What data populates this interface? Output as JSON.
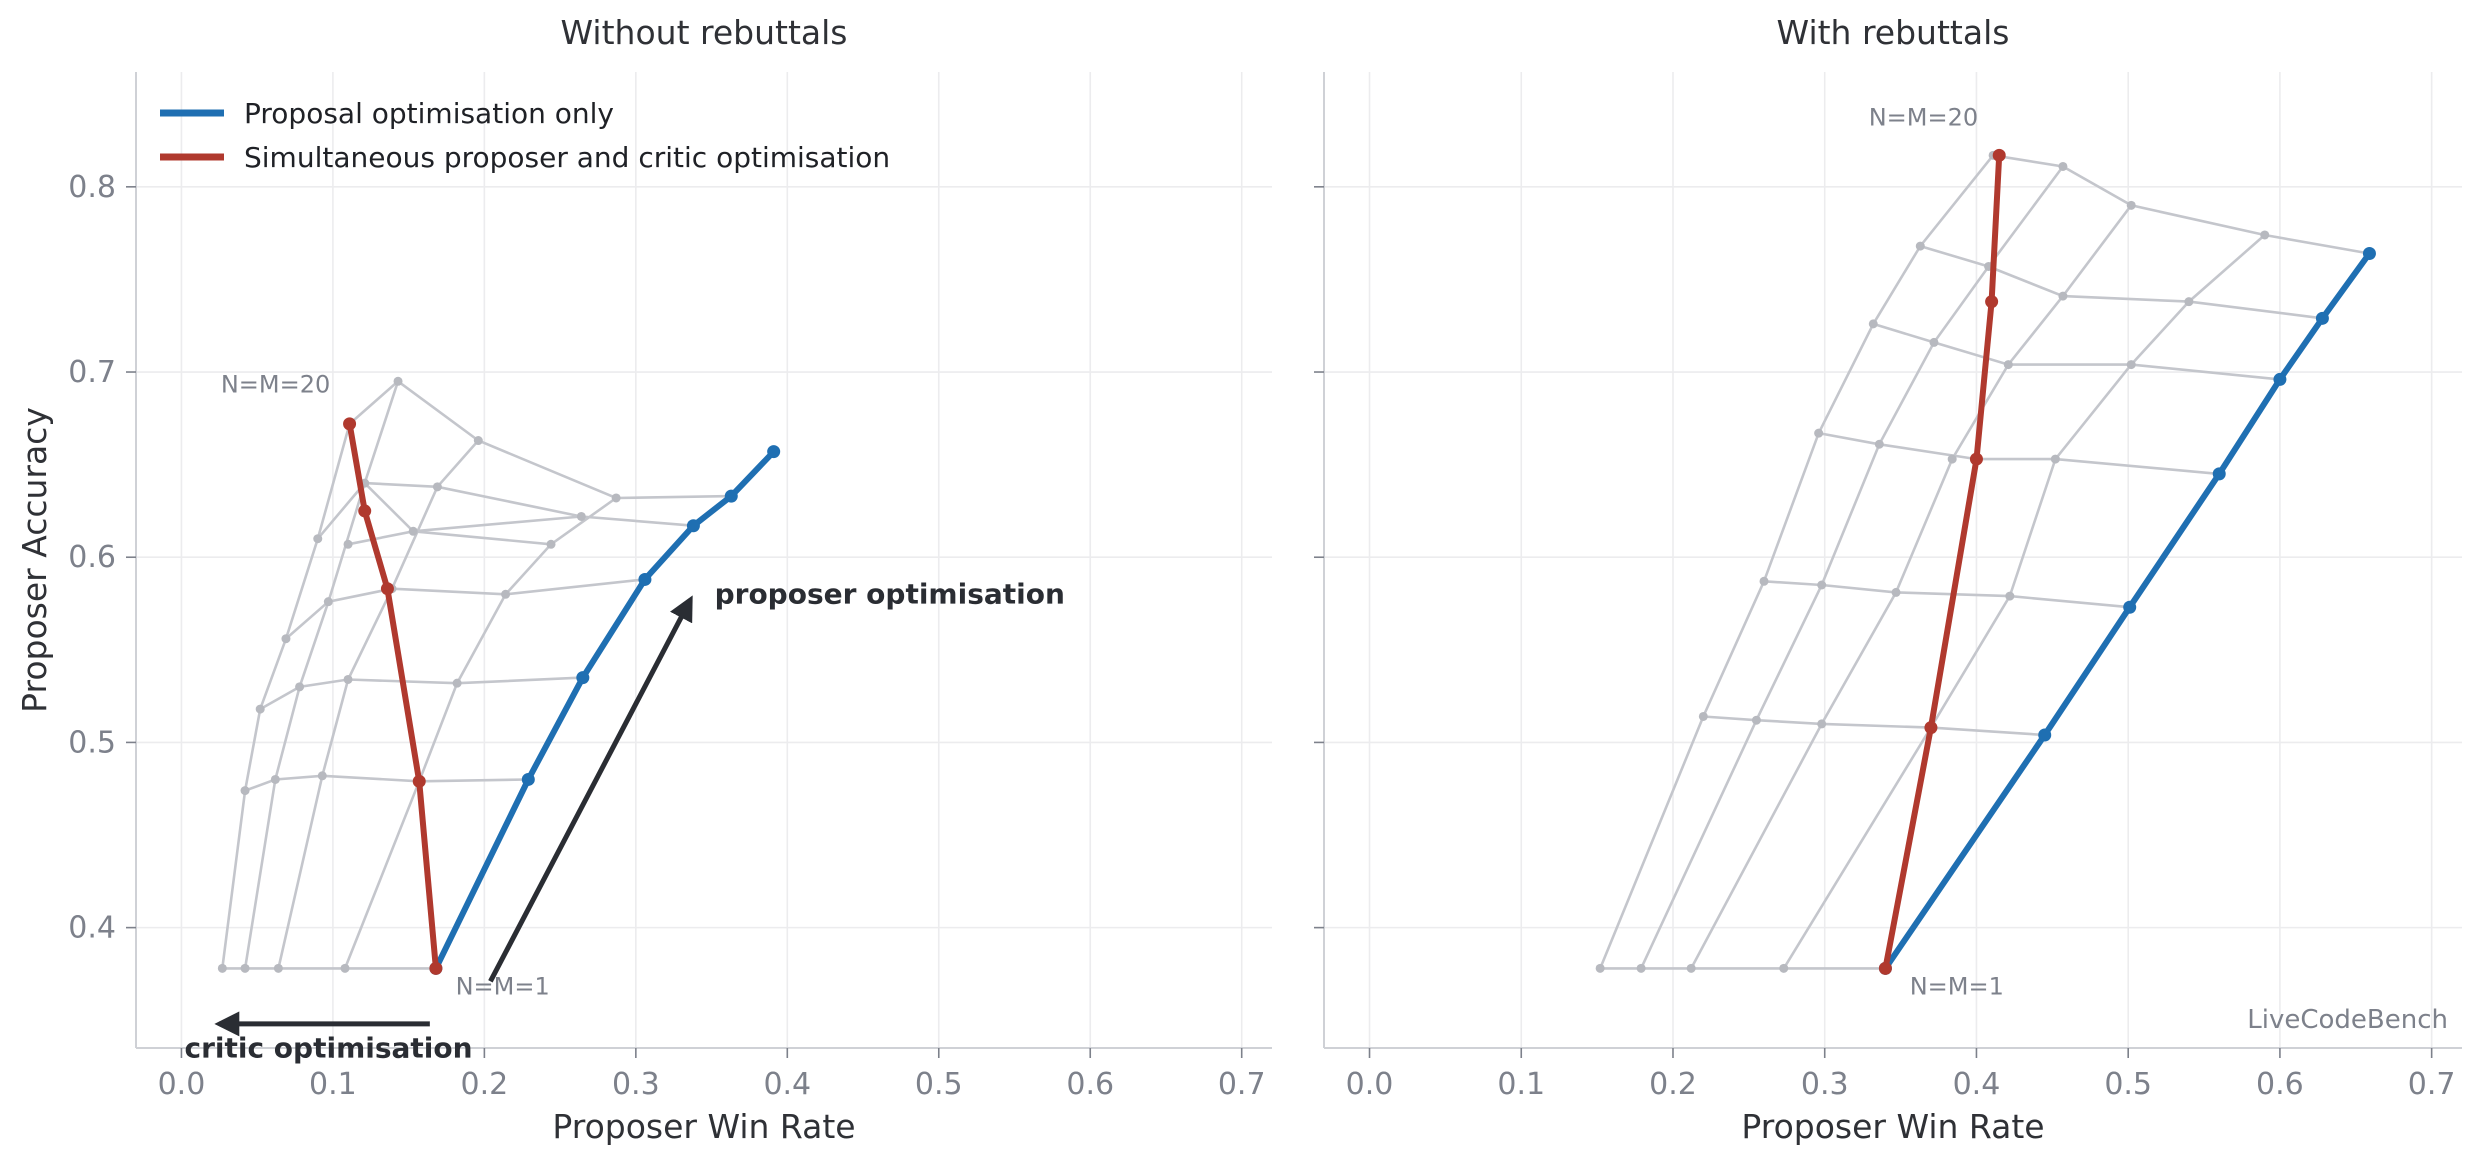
{
  "chart_data": [
    {
      "type": "line",
      "title": "Without rebuttals",
      "xlabel": "Proposer Win Rate",
      "ylabel": "Proposer Accuracy",
      "xlim": [
        -0.03,
        0.72
      ],
      "ylim": [
        0.335,
        0.862
      ],
      "xticks": [
        "0.0",
        "0.1",
        "0.2",
        "0.3",
        "0.4",
        "0.5",
        "0.6",
        "0.7"
      ],
      "yticks": [
        "0.4",
        "0.5",
        "0.6",
        "0.7",
        "0.8"
      ],
      "grid": true,
      "legend": {
        "placement": "top-left",
        "entries": [
          {
            "label": "Proposal optimisation only",
            "color": "#1f6fb2"
          },
          {
            "label": "Simultaneous proposer and critic optimisation",
            "color": "#b0392e"
          }
        ]
      },
      "annotations": [
        {
          "text": "N=M=20",
          "x": 0.026,
          "y": 0.689
        },
        {
          "text": "N=M=1",
          "x": 0.181,
          "y": 0.364
        }
      ],
      "arrows": [
        {
          "label": "proposer optimisation",
          "from": [
            0.204,
            0.371
          ],
          "to": [
            0.336,
            0.577
          ],
          "text_at": [
            0.352,
            0.575
          ]
        },
        {
          "label": "critic optimisation",
          "from": [
            0.164,
            0.348
          ],
          "to": [
            0.025,
            0.348
          ],
          "text_at": [
            0.002,
            0.33
          ]
        }
      ],
      "grid_color": "#c4c6cc",
      "grid_lines": [
        [
          [
            0.027,
            0.378
          ],
          [
            0.042,
            0.474
          ],
          [
            0.052,
            0.518
          ],
          [
            0.069,
            0.556
          ],
          [
            0.09,
            0.61
          ],
          [
            0.111,
            0.672
          ]
        ],
        [
          [
            0.042,
            0.378
          ],
          [
            0.062,
            0.48
          ],
          [
            0.078,
            0.53
          ],
          [
            0.097,
            0.576
          ],
          [
            0.121,
            0.64
          ],
          [
            0.143,
            0.695
          ]
        ],
        [
          [
            0.064,
            0.378
          ],
          [
            0.093,
            0.482
          ],
          [
            0.11,
            0.534
          ],
          [
            0.139,
            0.583
          ],
          [
            0.169,
            0.638
          ],
          [
            0.196,
            0.663
          ]
        ],
        [
          [
            0.108,
            0.378
          ],
          [
            0.157,
            0.479
          ],
          [
            0.182,
            0.532
          ],
          [
            0.214,
            0.58
          ],
          [
            0.244,
            0.607
          ],
          [
            0.287,
            0.632
          ]
        ],
        [
          [
            0.027,
            0.378
          ],
          [
            0.042,
            0.378
          ],
          [
            0.064,
            0.378
          ],
          [
            0.108,
            0.378
          ],
          [
            0.168,
            0.378
          ]
        ],
        [
          [
            0.042,
            0.474
          ],
          [
            0.062,
            0.48
          ],
          [
            0.093,
            0.482
          ],
          [
            0.157,
            0.479
          ],
          [
            0.229,
            0.48
          ]
        ],
        [
          [
            0.052,
            0.518
          ],
          [
            0.078,
            0.53
          ],
          [
            0.11,
            0.534
          ],
          [
            0.182,
            0.532
          ],
          [
            0.265,
            0.535
          ]
        ],
        [
          [
            0.069,
            0.556
          ],
          [
            0.097,
            0.576
          ],
          [
            0.139,
            0.583
          ],
          [
            0.214,
            0.58
          ],
          [
            0.306,
            0.588
          ]
        ],
        [
          [
            0.09,
            0.61
          ],
          [
            0.121,
            0.64
          ],
          [
            0.153,
            0.614
          ],
          [
            0.264,
            0.622
          ],
          [
            0.338,
            0.617
          ]
        ],
        [
          [
            0.111,
            0.672
          ],
          [
            0.143,
            0.695
          ],
          [
            0.196,
            0.663
          ],
          [
            0.287,
            0.632
          ],
          [
            0.363,
            0.633
          ]
        ],
        [
          [
            0.11,
            0.607
          ],
          [
            0.153,
            0.614
          ],
          [
            0.244,
            0.607
          ]
        ],
        [
          [
            0.121,
            0.64
          ],
          [
            0.169,
            0.638
          ],
          [
            0.264,
            0.622
          ]
        ]
      ],
      "series": [
        {
          "name": "Proposal optimisation only",
          "color": "#1f6fb2",
          "points": [
            [
              0.168,
              0.378
            ],
            [
              0.229,
              0.48
            ],
            [
              0.265,
              0.535
            ],
            [
              0.306,
              0.588
            ],
            [
              0.338,
              0.617
            ],
            [
              0.363,
              0.633
            ],
            [
              0.391,
              0.657
            ]
          ]
        },
        {
          "name": "Simultaneous proposer and critic optimisation",
          "color": "#b0392e",
          "points": [
            [
              0.168,
              0.378
            ],
            [
              0.157,
              0.479
            ],
            [
              0.136,
              0.583
            ],
            [
              0.121,
              0.625
            ],
            [
              0.111,
              0.672
            ]
          ]
        }
      ]
    },
    {
      "type": "line",
      "title": "With rebuttals",
      "xlabel": "Proposer Win Rate",
      "ylabel": "",
      "xlim": [
        -0.03,
        0.72
      ],
      "ylim": [
        0.335,
        0.862
      ],
      "xticks": [
        "0.0",
        "0.1",
        "0.2",
        "0.3",
        "0.4",
        "0.5",
        "0.6",
        "0.7"
      ],
      "yticks": [],
      "grid": true,
      "watermark": "LiveCodeBench",
      "annotations": [
        {
          "text": "N=M=20",
          "x": 0.329,
          "y": 0.833
        },
        {
          "text": "N=M=1",
          "x": 0.356,
          "y": 0.364
        }
      ],
      "grid_color": "#c4c6cc",
      "grid_lines": [
        [
          [
            0.152,
            0.378
          ],
          [
            0.22,
            0.514
          ],
          [
            0.26,
            0.587
          ],
          [
            0.296,
            0.667
          ],
          [
            0.332,
            0.726
          ],
          [
            0.363,
            0.768
          ],
          [
            0.411,
            0.817
          ]
        ],
        [
          [
            0.179,
            0.378
          ],
          [
            0.255,
            0.512
          ],
          [
            0.298,
            0.585
          ],
          [
            0.336,
            0.661
          ],
          [
            0.372,
            0.716
          ],
          [
            0.408,
            0.757
          ],
          [
            0.457,
            0.811
          ]
        ],
        [
          [
            0.212,
            0.378
          ],
          [
            0.298,
            0.51
          ],
          [
            0.347,
            0.581
          ],
          [
            0.384,
            0.653
          ],
          [
            0.421,
            0.704
          ],
          [
            0.457,
            0.741
          ],
          [
            0.502,
            0.79
          ]
        ],
        [
          [
            0.273,
            0.378
          ],
          [
            0.37,
            0.508
          ],
          [
            0.422,
            0.579
          ],
          [
            0.452,
            0.653
          ],
          [
            0.502,
            0.704
          ],
          [
            0.54,
            0.738
          ],
          [
            0.59,
            0.774
          ]
        ],
        [
          [
            0.152,
            0.378
          ],
          [
            0.179,
            0.378
          ],
          [
            0.212,
            0.378
          ],
          [
            0.273,
            0.378
          ],
          [
            0.34,
            0.378
          ]
        ],
        [
          [
            0.22,
            0.514
          ],
          [
            0.255,
            0.512
          ],
          [
            0.298,
            0.51
          ],
          [
            0.37,
            0.508
          ],
          [
            0.445,
            0.504
          ]
        ],
        [
          [
            0.26,
            0.587
          ],
          [
            0.298,
            0.585
          ],
          [
            0.347,
            0.581
          ],
          [
            0.422,
            0.579
          ],
          [
            0.501,
            0.573
          ]
        ],
        [
          [
            0.296,
            0.667
          ],
          [
            0.336,
            0.661
          ],
          [
            0.4,
            0.653
          ],
          [
            0.452,
            0.653
          ],
          [
            0.56,
            0.645
          ]
        ],
        [
          [
            0.332,
            0.726
          ],
          [
            0.372,
            0.716
          ],
          [
            0.421,
            0.704
          ],
          [
            0.502,
            0.704
          ],
          [
            0.6,
            0.696
          ]
        ],
        [
          [
            0.363,
            0.768
          ],
          [
            0.408,
            0.757
          ],
          [
            0.457,
            0.741
          ],
          [
            0.54,
            0.738
          ],
          [
            0.628,
            0.729
          ]
        ],
        [
          [
            0.411,
            0.817
          ],
          [
            0.457,
            0.811
          ],
          [
            0.502,
            0.79
          ],
          [
            0.59,
            0.774
          ],
          [
            0.659,
            0.764
          ]
        ]
      ],
      "series": [
        {
          "name": "Proposal optimisation only",
          "color": "#1f6fb2",
          "points": [
            [
              0.34,
              0.378
            ],
            [
              0.445,
              0.504
            ],
            [
              0.501,
              0.573
            ],
            [
              0.56,
              0.645
            ],
            [
              0.6,
              0.696
            ],
            [
              0.628,
              0.729
            ],
            [
              0.659,
              0.764
            ]
          ]
        },
        {
          "name": "Simultaneous proposer and critic optimisation",
          "color": "#b0392e",
          "points": [
            [
              0.34,
              0.378
            ],
            [
              0.37,
              0.508
            ],
            [
              0.4,
              0.653
            ],
            [
              0.41,
              0.738
            ],
            [
              0.415,
              0.817
            ]
          ]
        }
      ]
    }
  ]
}
